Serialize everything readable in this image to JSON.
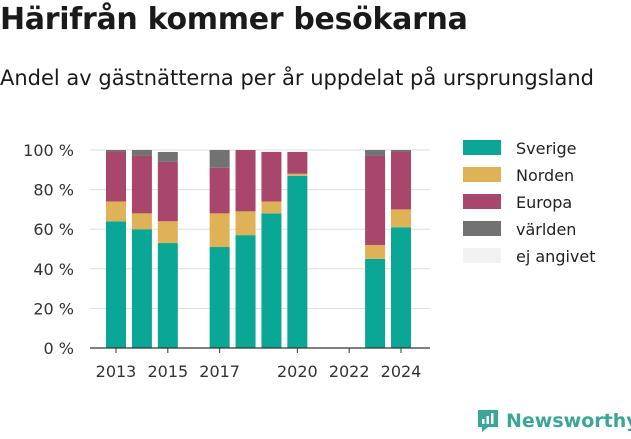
{
  "header": {
    "title": "Härifrån kommer besökarna",
    "subtitle": "Andel av gästnätterna per år uppdelat på ursprungsland"
  },
  "brand": {
    "name": "Newsworthy",
    "color": "#3aa697"
  },
  "chart_data": {
    "type": "bar",
    "stacked": true,
    "years": [
      2013,
      2014,
      2015,
      2016,
      2017,
      2018,
      2019,
      2020,
      2021,
      2022,
      2023,
      2024
    ],
    "series": [
      {
        "name": "Sverige",
        "color": "#0aa696",
        "values": [
          64,
          60,
          53,
          null,
          51,
          57,
          68,
          87,
          null,
          null,
          45,
          61
        ]
      },
      {
        "name": "Norden",
        "color": "#dfb258",
        "values": [
          10,
          8,
          11,
          null,
          17,
          12,
          6,
          1,
          null,
          null,
          7,
          9
        ]
      },
      {
        "name": "Europa",
        "color": "#a9466b",
        "values": [
          25,
          29,
          30,
          null,
          23,
          31,
          25,
          11,
          null,
          null,
          45,
          29
        ]
      },
      {
        "name": "världen",
        "color": "#727272",
        "values": [
          1,
          3,
          5,
          null,
          9,
          0,
          0,
          0,
          null,
          null,
          3,
          1
        ]
      },
      {
        "name": "ej angivet",
        "color": "#f2f2f2",
        "values": [
          0,
          0,
          0,
          null,
          0,
          0,
          1,
          1,
          null,
          null,
          0,
          0
        ]
      }
    ],
    "ylim": [
      0,
      100
    ],
    "yticks": [
      "0 %",
      "20 %",
      "40 %",
      "60 %",
      "80 %",
      "100 %"
    ],
    "xticks": [
      "2013",
      "2015",
      "2017",
      "2020",
      "2022",
      "2024"
    ],
    "grid": true,
    "legend_position": "right"
  }
}
